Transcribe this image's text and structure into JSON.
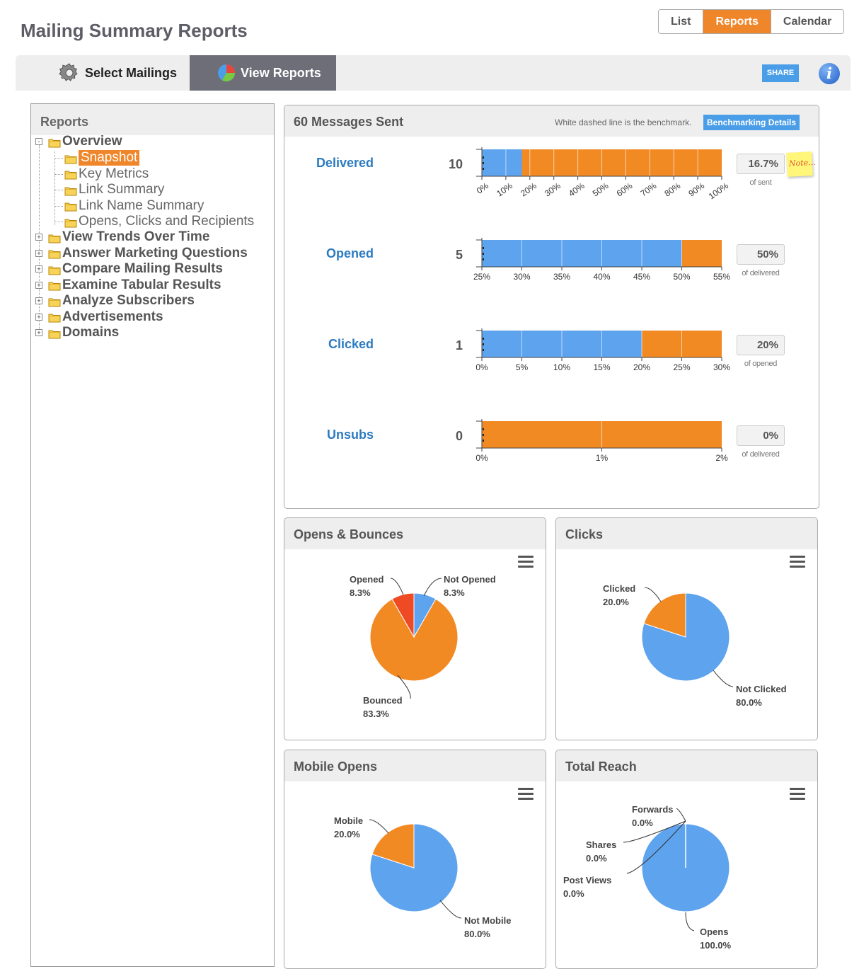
{
  "page_title": "Mailing Summary Reports",
  "view_switch": {
    "list": "List",
    "reports": "Reports",
    "calendar": "Calendar",
    "active": "Reports"
  },
  "tabs": {
    "select_mailings": "Select Mailings",
    "view_reports": "View Reports"
  },
  "share_label": "SHARE",
  "info_label": "i",
  "tree": {
    "title": "Reports",
    "overview": "Overview",
    "overview_children": [
      "Snapshot",
      "Key Metrics",
      "Link Summary",
      "Link Name Summary",
      "Opens, Clicks and Recipients"
    ],
    "sections": [
      "View Trends Over Time",
      "Answer Marketing Questions",
      "Compare Mailing Results",
      "Examine Tabular Results",
      "Analyze Subscribers",
      "Advertisements",
      "Domains"
    ],
    "selected": "Snapshot"
  },
  "summary": {
    "title": "60 Messages Sent",
    "benchmark_note": "White dashed line is the benchmark.",
    "benchmark_button": "Benchmarking Details",
    "note_label": "Note..."
  },
  "metrics": [
    {
      "label": "Delivered",
      "count": "10",
      "percent": "16.7%",
      "sub": "of sent"
    },
    {
      "label": "Opened",
      "count": "5",
      "percent": "50%",
      "sub": "of delivered"
    },
    {
      "label": "Clicked",
      "count": "1",
      "percent": "20%",
      "sub": "of opened"
    },
    {
      "label": "Unsubs",
      "count": "0",
      "percent": "0%",
      "sub": "of delivered"
    }
  ],
  "chart_data": [
    {
      "type": "bar",
      "orientation": "horizontal-stacked",
      "name": "Delivered",
      "value_percent": 16.7,
      "xlim": [
        0,
        100
      ],
      "ticks": [
        "0%",
        "10%",
        "20%",
        "30%",
        "40%",
        "50%",
        "60%",
        "70%",
        "80%",
        "90%",
        "100%"
      ],
      "tick_rotated": true
    },
    {
      "type": "bar",
      "orientation": "horizontal-stacked",
      "name": "Opened",
      "value_percent": 50,
      "xlim": [
        25,
        55
      ],
      "ticks": [
        "25%",
        "30%",
        "35%",
        "40%",
        "45%",
        "50%",
        "55%"
      ]
    },
    {
      "type": "bar",
      "orientation": "horizontal-stacked",
      "name": "Clicked",
      "value_percent": 20,
      "xlim": [
        0,
        30
      ],
      "ticks": [
        "0%",
        "5%",
        "10%",
        "15%",
        "20%",
        "25%",
        "30%"
      ]
    },
    {
      "type": "bar",
      "orientation": "horizontal-stacked",
      "name": "Unsubs",
      "value_percent": 0,
      "xlim": [
        0,
        2
      ],
      "ticks": [
        "0%",
        "1%",
        "2%"
      ]
    },
    {
      "type": "pie",
      "title": "Opens & Bounces",
      "slices": [
        {
          "label": "Not Opened",
          "value": 8.3,
          "display": "8.3%",
          "color": "#5ea3ee"
        },
        {
          "label": "Bounced",
          "value": 83.3,
          "display": "83.3%",
          "color": "#f28a24"
        },
        {
          "label": "Opened",
          "value": 8.3,
          "display": "8.3%",
          "color": "#ee4a24"
        }
      ]
    },
    {
      "type": "pie",
      "title": "Clicks",
      "slices": [
        {
          "label": "Not Clicked",
          "value": 80.0,
          "display": "80.0%",
          "color": "#5ea3ee"
        },
        {
          "label": "Clicked",
          "value": 20.0,
          "display": "20.0%",
          "color": "#f28a24"
        }
      ]
    },
    {
      "type": "pie",
      "title": "Mobile Opens",
      "slices": [
        {
          "label": "Not Mobile",
          "value": 80.0,
          "display": "80.0%",
          "color": "#5ea3ee"
        },
        {
          "label": "Mobile",
          "value": 20.0,
          "display": "20.0%",
          "color": "#f28a24"
        }
      ]
    },
    {
      "type": "pie",
      "title": "Total Reach",
      "slices": [
        {
          "label": "Opens",
          "value": 100.0,
          "display": "100.0%",
          "color": "#5ea3ee"
        },
        {
          "label": "Post Views",
          "value": 0.0,
          "display": "0.0%",
          "color": "#f28a24"
        },
        {
          "label": "Shares",
          "value": 0.0,
          "display": "0.0%",
          "color": "#ee4a24"
        },
        {
          "label": "Forwards",
          "value": 0.0,
          "display": "0.0%",
          "color": "#8bc34a"
        }
      ]
    }
  ],
  "colors": {
    "accent": "#f0862a",
    "blue": "#5ea3ee",
    "orange": "#f28a24",
    "link": "#2c7bc0"
  }
}
